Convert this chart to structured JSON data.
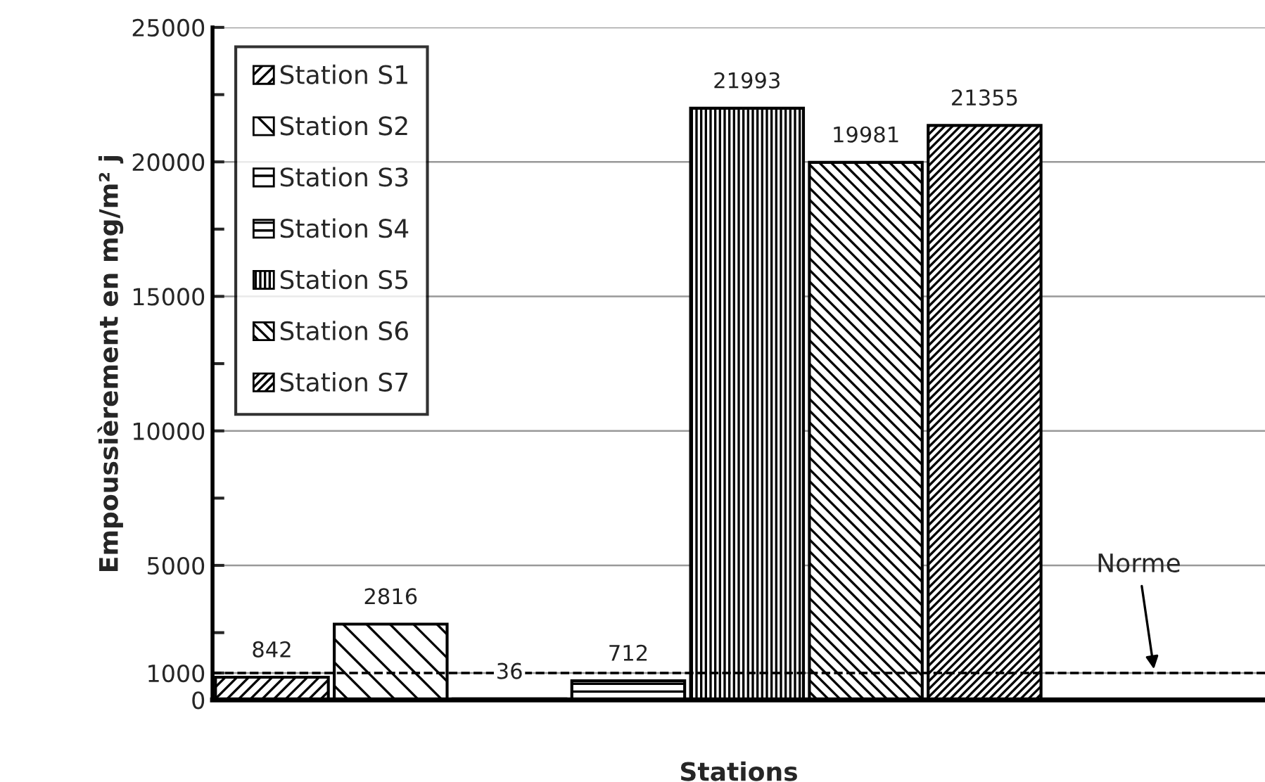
{
  "chart_data": {
    "type": "bar",
    "xlabel": "Stations",
    "ylabel": "Empoussièrement en mg/m² j",
    "categories": [
      null
    ],
    "series": [
      {
        "name": "Station S1",
        "color": "#000000",
        "values": [
          842
        ]
      },
      {
        "name": "Station S2",
        "color": "#000000",
        "values": [
          2816
        ]
      },
      {
        "name": "Station S3",
        "color": "#000000",
        "values": [
          36
        ]
      },
      {
        "name": "Station S4",
        "color": "#000000",
        "values": [
          712
        ]
      },
      {
        "name": "Station S5",
        "color": "#000000",
        "values": [
          21993
        ]
      },
      {
        "name": "Station S6",
        "color": "#000000",
        "values": [
          19981
        ]
      },
      {
        "name": "Station S7",
        "color": "#000000",
        "values": [
          21355
        ]
      }
    ],
    "ylim": [
      0,
      25000
    ],
    "yticks": [
      0,
      1000,
      {
        "value": 2500,
        "label": null
      },
      5000,
      {
        "value": 7500,
        "label": null
      },
      10000,
      {
        "value": 12500,
        "label": null
      },
      15000,
      {
        "value": 17500,
        "label": null
      },
      20000,
      {
        "value": 22500,
        "label": null
      },
      25000
    ],
    "ref_lines": [
      {
        "axis": "y",
        "value": 1000,
        "label": null,
        "color": "#000000",
        "line_style": "dashed"
      }
    ],
    "annotations": [
      "Norme"
    ],
    "data_labels": true,
    "grid": "y",
    "legend": "top left"
  }
}
